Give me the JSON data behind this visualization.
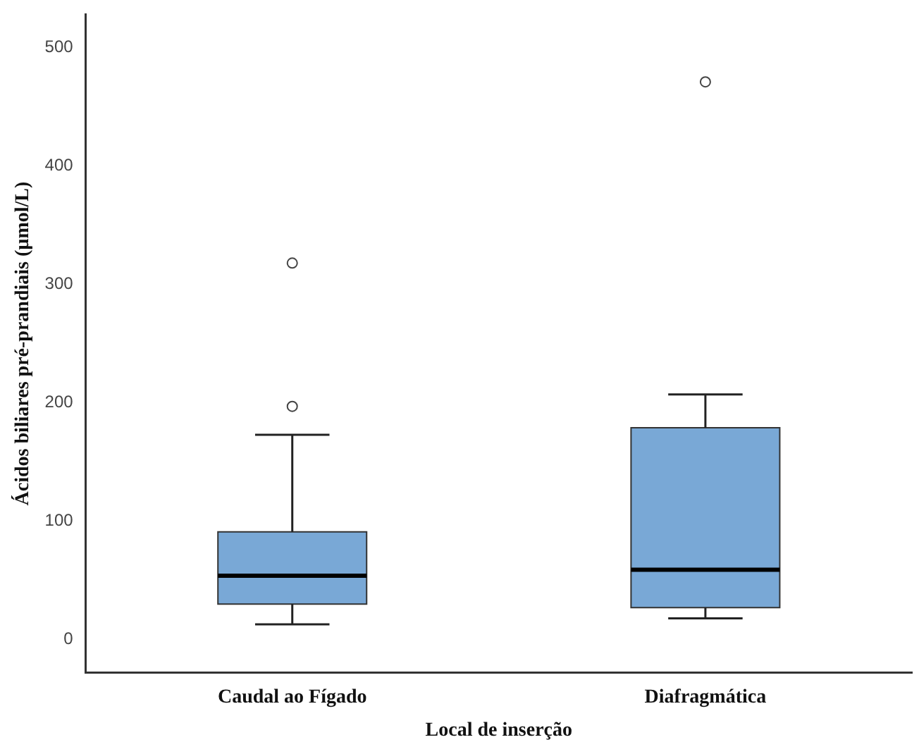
{
  "chart_data": {
    "type": "box",
    "xlabel": "Local de inserção",
    "ylabel": "Ácidos biliares pré-prandiais (µmol/L)",
    "categories": [
      "Caudal ao Fígado",
      "Diafragmática"
    ],
    "color": "#79a8d6",
    "boxes": [
      {
        "low": 13,
        "q1": 30,
        "median": 54,
        "q3": 91,
        "high": 173,
        "outliers": [
          197,
          318
        ]
      },
      {
        "low": 18,
        "q1": 27,
        "median": 59,
        "q3": 179,
        "high": 207,
        "outliers": [
          471
        ]
      }
    ],
    "ylim": [
      -28,
      528
    ],
    "yticks": [
      0,
      100,
      200,
      300,
      400,
      500
    ],
    "grid": false,
    "legend": false
  }
}
